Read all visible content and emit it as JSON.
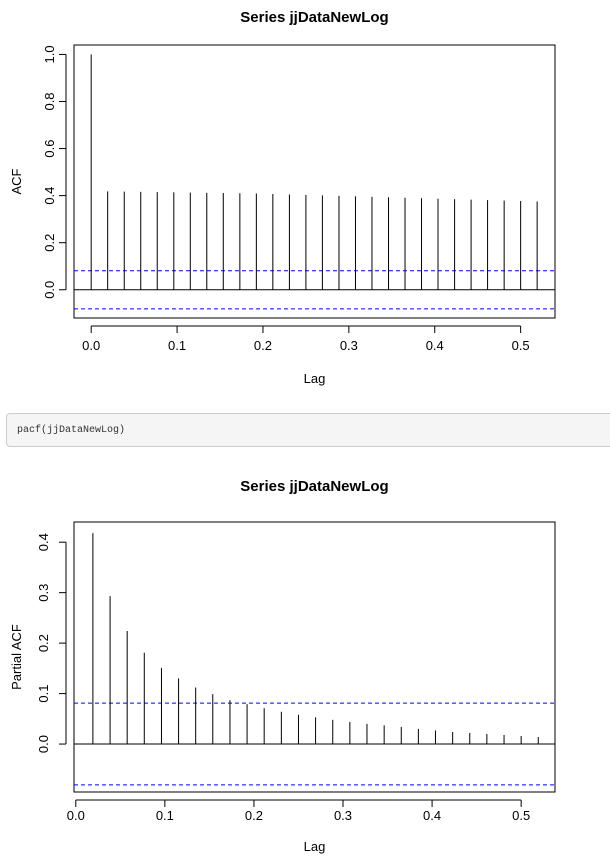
{
  "code_chunk": {
    "text": "pacf(jjDataNewLog)"
  },
  "colors": {
    "bar": "#000000",
    "confidence_band": "#0000ff",
    "axis": "#000000",
    "code_bg": "#f5f5f5"
  },
  "chart_data": [
    {
      "type": "bar",
      "subtype": "acf-correlogram",
      "title": "Series  jjDataNewLog",
      "xlabel": "Lag",
      "ylabel": "ACF",
      "xlim": [
        -0.02,
        0.54
      ],
      "ylim": [
        -0.12,
        1.04
      ],
      "xticks": [
        0.0,
        0.1,
        0.2,
        0.3,
        0.4,
        0.5
      ],
      "xtick_labels": [
        "0.0",
        "0.1",
        "0.2",
        "0.3",
        "0.4",
        "0.5"
      ],
      "yticks": [
        0.0,
        0.2,
        0.4,
        0.6,
        0.8,
        1.0
      ],
      "ytick_labels": [
        "0.0",
        "0.2",
        "0.4",
        "0.6",
        "0.8",
        "1.0"
      ],
      "confidence_bands": [
        0.081,
        -0.081
      ],
      "zero_line": true,
      "grid": false,
      "x": [
        0.0,
        0.0192,
        0.0385,
        0.0577,
        0.0769,
        0.0962,
        0.1154,
        0.1346,
        0.1538,
        0.1731,
        0.1923,
        0.2115,
        0.2308,
        0.25,
        0.2692,
        0.2885,
        0.3077,
        0.3269,
        0.3462,
        0.3654,
        0.3846,
        0.4038,
        0.4231,
        0.4423,
        0.4615,
        0.4808,
        0.5,
        0.5192
      ],
      "values": [
        1.0,
        0.418,
        0.417,
        0.416,
        0.415,
        0.414,
        0.413,
        0.412,
        0.411,
        0.41,
        0.409,
        0.407,
        0.405,
        0.403,
        0.401,
        0.399,
        0.397,
        0.395,
        0.393,
        0.391,
        0.389,
        0.387,
        0.385,
        0.383,
        0.381,
        0.379,
        0.377,
        0.375
      ]
    },
    {
      "type": "bar",
      "subtype": "pacf-correlogram",
      "title": "Series  jjDataNewLog",
      "xlabel": "Lag",
      "ylabel": "Partial ACF",
      "xlim": [
        -0.002,
        0.538
      ],
      "ylim": [
        -0.095,
        0.44
      ],
      "xticks": [
        0.0,
        0.1,
        0.2,
        0.3,
        0.4,
        0.5
      ],
      "xtick_labels": [
        "0.0",
        "0.1",
        "0.2",
        "0.3",
        "0.4",
        "0.5"
      ],
      "yticks": [
        0.0,
        0.1,
        0.2,
        0.3,
        0.4
      ],
      "ytick_labels": [
        "0.0",
        "0.1",
        "0.2",
        "0.3",
        "0.4"
      ],
      "confidence_bands": [
        0.081,
        -0.081
      ],
      "zero_line": true,
      "grid": false,
      "x": [
        0.0192,
        0.0385,
        0.0577,
        0.0769,
        0.0962,
        0.1154,
        0.1346,
        0.1538,
        0.1731,
        0.1923,
        0.2115,
        0.2308,
        0.25,
        0.2692,
        0.2885,
        0.3077,
        0.3269,
        0.3462,
        0.3654,
        0.3846,
        0.4038,
        0.4231,
        0.4423,
        0.4615,
        0.4808,
        0.5,
        0.5192
      ],
      "values": [
        0.418,
        0.293,
        0.224,
        0.181,
        0.151,
        0.13,
        0.112,
        0.099,
        0.087,
        0.079,
        0.071,
        0.064,
        0.058,
        0.053,
        0.048,
        0.044,
        0.04,
        0.037,
        0.034,
        0.03,
        0.027,
        0.024,
        0.022,
        0.02,
        0.018,
        0.016,
        0.014
      ]
    }
  ]
}
